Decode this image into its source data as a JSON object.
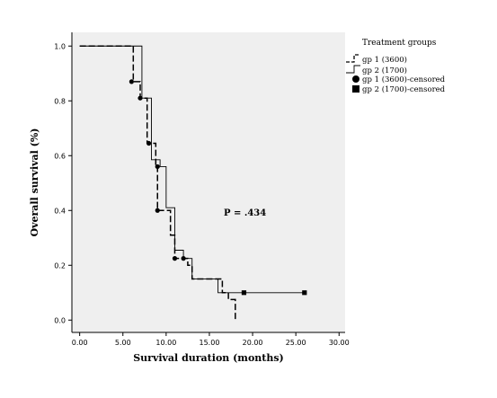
{
  "chart_data": {
    "type": "line",
    "subtype": "kaplan-meier-step",
    "xlabel": "Survival duration (months)",
    "ylabel": "Overall survival (%)",
    "xlim": [
      0,
      30
    ],
    "ylim": [
      0,
      1.0
    ],
    "x_ticks": [
      "0.00",
      "5.00",
      "10.00",
      "15.00",
      "20.00",
      "25.00",
      "30.00"
    ],
    "y_ticks": [
      "0.0",
      "0.2",
      "0.4",
      "0.6",
      "0.8",
      "1.0"
    ],
    "grid": false,
    "background": "#efefef",
    "annotation": "P = .434",
    "legend_title": "Treatment groups",
    "legend_placement": "right",
    "legend": [
      {
        "label": "gp 1 (3600)",
        "symbol": "dashed-step"
      },
      {
        "label": "gp 2 (1700)",
        "symbol": "solid-step"
      },
      {
        "label": "gp 1 (3600)-censored",
        "symbol": "circle"
      },
      {
        "label": "gp 2 (1700)-censored",
        "symbol": "square"
      }
    ],
    "series": [
      {
        "name": "gp 1 (3600)",
        "style": "dashed",
        "steps": [
          [
            0,
            1.0
          ],
          [
            6.2,
            0.87
          ],
          [
            7.0,
            0.81
          ],
          [
            7.8,
            0.645
          ],
          [
            8.8,
            0.56
          ],
          [
            9.0,
            0.4
          ],
          [
            10.5,
            0.31
          ],
          [
            11.0,
            0.225
          ],
          [
            12.5,
            0.2
          ],
          [
            13.0,
            0.15
          ],
          [
            16.5,
            0.1
          ],
          [
            17.2,
            0.075
          ],
          [
            18.0,
            0.0
          ]
        ],
        "censored": [
          [
            6.0,
            0.87
          ],
          [
            7.0,
            0.81
          ],
          [
            8.0,
            0.645
          ],
          [
            9.0,
            0.56
          ],
          [
            9.0,
            0.4
          ],
          [
            11.0,
            0.225
          ],
          [
            12.0,
            0.225
          ]
        ]
      },
      {
        "name": "gp 2 (1700)",
        "style": "solid",
        "steps": [
          [
            0,
            1.0
          ],
          [
            7.2,
            0.81
          ],
          [
            8.3,
            0.585
          ],
          [
            9.3,
            0.56
          ],
          [
            10.0,
            0.41
          ],
          [
            11.0,
            0.255
          ],
          [
            12.0,
            0.225
          ],
          [
            13.0,
            0.15
          ],
          [
            15.0,
            0.15
          ],
          [
            16.0,
            0.1
          ],
          [
            26.0,
            0.1
          ]
        ],
        "censored": [
          [
            19.0,
            0.1
          ],
          [
            26.0,
            0.1
          ]
        ]
      }
    ]
  }
}
